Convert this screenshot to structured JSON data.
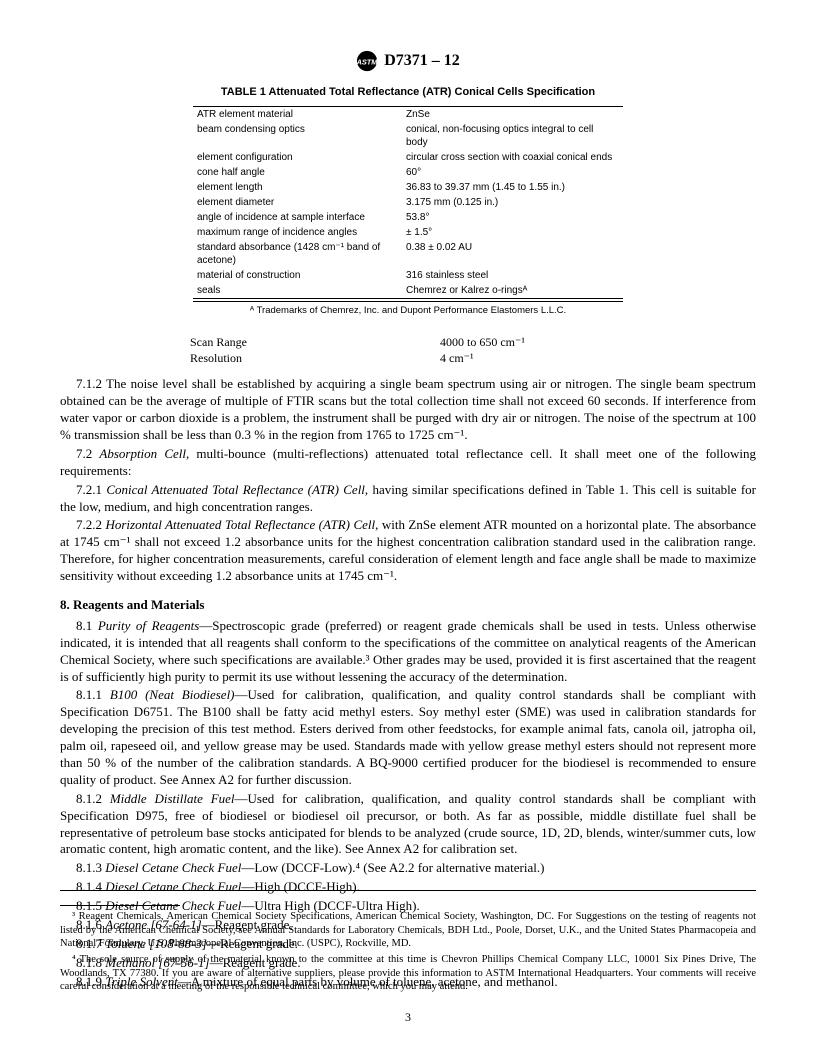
{
  "doc_header": "D7371 – 12",
  "table_title": "TABLE 1  Attenuated Total Reflectance (ATR) Conical Cells Specification",
  "table_rows": [
    [
      "ATR element material",
      "ZnSe"
    ],
    [
      "beam condensing optics",
      "conical, non-focusing optics integral to cell body"
    ],
    [
      "element configuration",
      "circular cross section with coaxial conical ends"
    ],
    [
      "cone half angle",
      "60°"
    ],
    [
      "element length",
      "36.83 to 39.37 mm (1.45 to 1.55 in.)"
    ],
    [
      "element diameter",
      "3.175 mm (0.125 in.)"
    ],
    [
      "angle of incidence at sample interface",
      "53.8°"
    ],
    [
      "maximum range of incidence angles",
      "± 1.5°"
    ],
    [
      "standard absorbance (1428 cm⁻¹ band of acetone)",
      "0.38 ± 0.02 AU"
    ],
    [
      "material of construction",
      "316 stainless steel"
    ],
    [
      "seals",
      "Chemrez or Kalrez o-ringsᴬ"
    ]
  ],
  "table_footnote": "ᴬ Trademarks of Chemrez, Inc. and Dupont Performance Elastomers L.L.C.",
  "scan": [
    {
      "label": "Scan Range",
      "value": "4000 to 650 cm⁻¹"
    },
    {
      "label": "Resolution",
      "value": "4 cm⁻¹"
    }
  ],
  "para_7_1_2": "7.1.2 The noise level shall be established by acquiring a single beam spectrum using air or nitrogen. The single beam spectrum obtained can be the average of multiple of FTIR scans but the total collection time shall not exceed 60 seconds. If interference from water vapor or carbon dioxide is a problem, the instrument shall be purged with dry air or nitrogen. The noise of the spectrum at 100 % transmission shall be less than 0.3 % in the region from 1765 to 1725 cm⁻¹.",
  "para_7_2_lead": "7.2 ",
  "para_7_2_italic": "Absorption Cell",
  "para_7_2_rest": ", multi-bounce (multi-reflections) attenuated total reflectance cell. It shall meet one of the following requirements:",
  "para_7_2_1_lead": "7.2.1 ",
  "para_7_2_1_italic": "Conical Attenuated Total Reflectance (ATR) Cell",
  "para_7_2_1_rest": ", having similar specifications defined in Table 1. This cell is suitable for the low, medium, and high concentration ranges.",
  "para_7_2_2_lead": "7.2.2 ",
  "para_7_2_2_italic": "Horizontal Attenuated Total Reflectance (ATR) Cell",
  "para_7_2_2_rest": ", with ZnSe element ATR mounted on a horizontal plate. The absorbance at 1745 cm⁻¹ shall not exceed 1.2 absorbance units for the highest concentration calibration standard used in the calibration range. Therefore, for higher concentration measurements, careful consideration of element length and face angle shall be made to maximize sensitivity without exceeding 1.2 absorbance units at 1745 cm⁻¹.",
  "section8": "8.  Reagents and Materials",
  "para_8_1_lead": "8.1 ",
  "para_8_1_italic": "Purity of Reagents",
  "para_8_1_rest": "—Spectroscopic grade (preferred) or reagent grade chemicals shall be used in tests. Unless otherwise indicated, it is intended that all reagents shall conform to the specifications of the committee on analytical reagents of the American Chemical Society, where such specifications are available.³ Other grades may be used, provided it is first ascertained that the reagent is of sufficiently high purity to permit its use without lessening the accuracy of the determination.",
  "para_8_1_1_lead": "8.1.1 ",
  "para_8_1_1_italic": "B100 (Neat Biodiesel)",
  "para_8_1_1_rest": "—Used for calibration, qualification, and quality control standards shall be compliant with Specification D6751. The B100 shall be fatty acid methyl esters. Soy methyl ester (SME) was used in calibration standards for developing the precision of this test method. Esters derived from other feedstocks, for example animal fats, canola oil, jatropha oil, palm oil, rapeseed oil, and yellow grease may be used. Standards made with yellow grease methyl esters should not represent more than 50 % of the number of the calibration standards. A BQ-9000 certified producer for the biodiesel is recommended to ensure quality of product. See Annex A2 for further discussion.",
  "para_8_1_2_lead": "8.1.2 ",
  "para_8_1_2_italic": "Middle Distillate Fuel",
  "para_8_1_2_rest": "—Used for calibration, qualification, and quality control standards shall be compliant with Specification D975, free of biodiesel or biodiesel oil precursor, or both. As far as possible, middle distillate fuel shall be representative of petroleum base stocks anticipated for blends to be analyzed (crude source, 1D, 2D, blends, winter/summer cuts, low aromatic content, high aromatic content, and the like). See Annex A2 for calibration set.",
  "para_8_1_3_lead": "8.1.3 ",
  "para_8_1_3_italic": "Diesel Cetane Check Fuel",
  "para_8_1_3_rest": "—Low (DCCF-Low).⁴ (See A2.2 for alternative material.)",
  "para_8_1_4_lead": "8.1.4 ",
  "para_8_1_4_italic": "Diesel Cetane Check Fuel",
  "para_8_1_4_rest": "—High (DCCF-High).",
  "para_8_1_5_lead": "8.1.5 ",
  "para_8_1_5_italic": "Diesel Cetane Check Fuel",
  "para_8_1_5_rest": "—Ultra High (DCCF-Ultra High).",
  "para_8_1_6_lead": "8.1.6 ",
  "para_8_1_6_italic": "Acetone [67-64-1]",
  "para_8_1_6_rest": "—Reagent grade.",
  "para_8_1_7_lead": "8.1.7 ",
  "para_8_1_7_italic": "Toluene [108-88-3]",
  "para_8_1_7_rest": "—Reagent grade.",
  "para_8_1_8_lead": "8.1.8 ",
  "para_8_1_8_italic": "Methanol [67-56-1]",
  "para_8_1_8_rest": "—Reagent grade.",
  "para_8_1_9_lead": "8.1.9 ",
  "para_8_1_9_italic": "Triple Solvent",
  "para_8_1_9_rest": "—A mixture of equal parts by volume of toluene, acetone, and methanol.",
  "footnote3": "³ Reagent Chemicals, American Chemical Society Specifications, American Chemical Society, Washington, DC. For Suggestions on the testing of reagents not listed by the American Chemical Society, see Annual Standards for Laboratory Chemicals, BDH Ltd., Poole, Dorset, U.K., and the United States Pharmacopeia and National Formulary, U.S. Pharmacopeial Convention, Inc. (USPC), Rockville, MD.",
  "footnote4": "⁴ The sole source of supply of the material known to the committee at this time is Chevron Phillips Chemical Company LLC, 10001 Six Pines Drive, The Woodlands, TX 77380. If you are aware of alternative suppliers, please provide this information to ASTM International Headquarters. Your comments will receive careful consideration at a meeting of the responsible technical committee, which you may attend.",
  "page_number": "3"
}
